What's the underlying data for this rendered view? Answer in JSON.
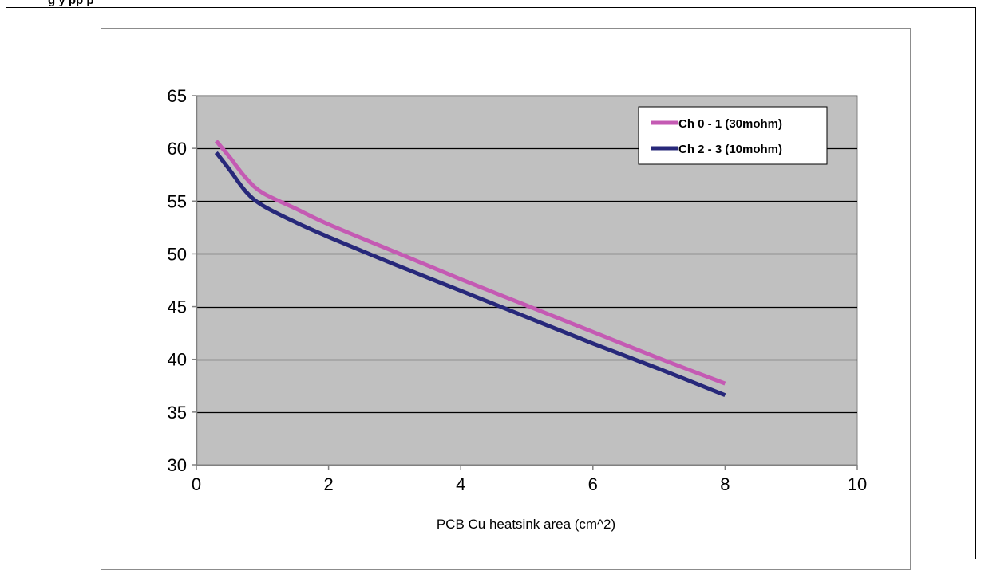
{
  "header": {
    "text": "g    y                       pp        p"
  },
  "colors": {
    "plot_background": "#c0c0c0",
    "series_0": "#c45ab3",
    "series_1": "#27287a"
  },
  "chart_data": {
    "type": "line",
    "title": "",
    "xlabel": "PCB Cu heatsink area (cm^2)",
    "ylabel": "",
    "xlim": [
      0,
      10
    ],
    "ylim": [
      30,
      65
    ],
    "xticks": [
      0,
      2,
      4,
      6,
      8,
      10
    ],
    "yticks": [
      30,
      35,
      40,
      45,
      50,
      55,
      60,
      65
    ],
    "xtick_labels": [
      "0",
      "2",
      "4",
      "6",
      "8",
      "10"
    ],
    "ytick_labels": [
      "30",
      "35",
      "40",
      "45",
      "50",
      "55",
      "60",
      "65"
    ],
    "grid": "horizontal",
    "legend_position": "top-right",
    "series": [
      {
        "name": "Ch 0 - 1 (30mohm)",
        "color": "#c45ab3",
        "x": [
          0.3,
          0.5,
          0.75,
          1,
          1.5,
          2,
          3,
          4,
          5,
          6,
          7,
          8
        ],
        "y": [
          60.7,
          59.2,
          57.2,
          55.8,
          54.3,
          52.8,
          50.2,
          47.6,
          45.1,
          42.6,
          40.1,
          37.7
        ]
      },
      {
        "name": "Ch 2 - 3 (10mohm)",
        "color": "#27287a",
        "x": [
          0.3,
          0.5,
          0.75,
          1,
          1.5,
          2,
          3,
          4,
          5,
          6,
          7,
          8
        ],
        "y": [
          59.6,
          58.0,
          55.9,
          54.6,
          53.0,
          51.6,
          49.0,
          46.5,
          44.0,
          41.5,
          39.1,
          36.6
        ]
      }
    ]
  }
}
